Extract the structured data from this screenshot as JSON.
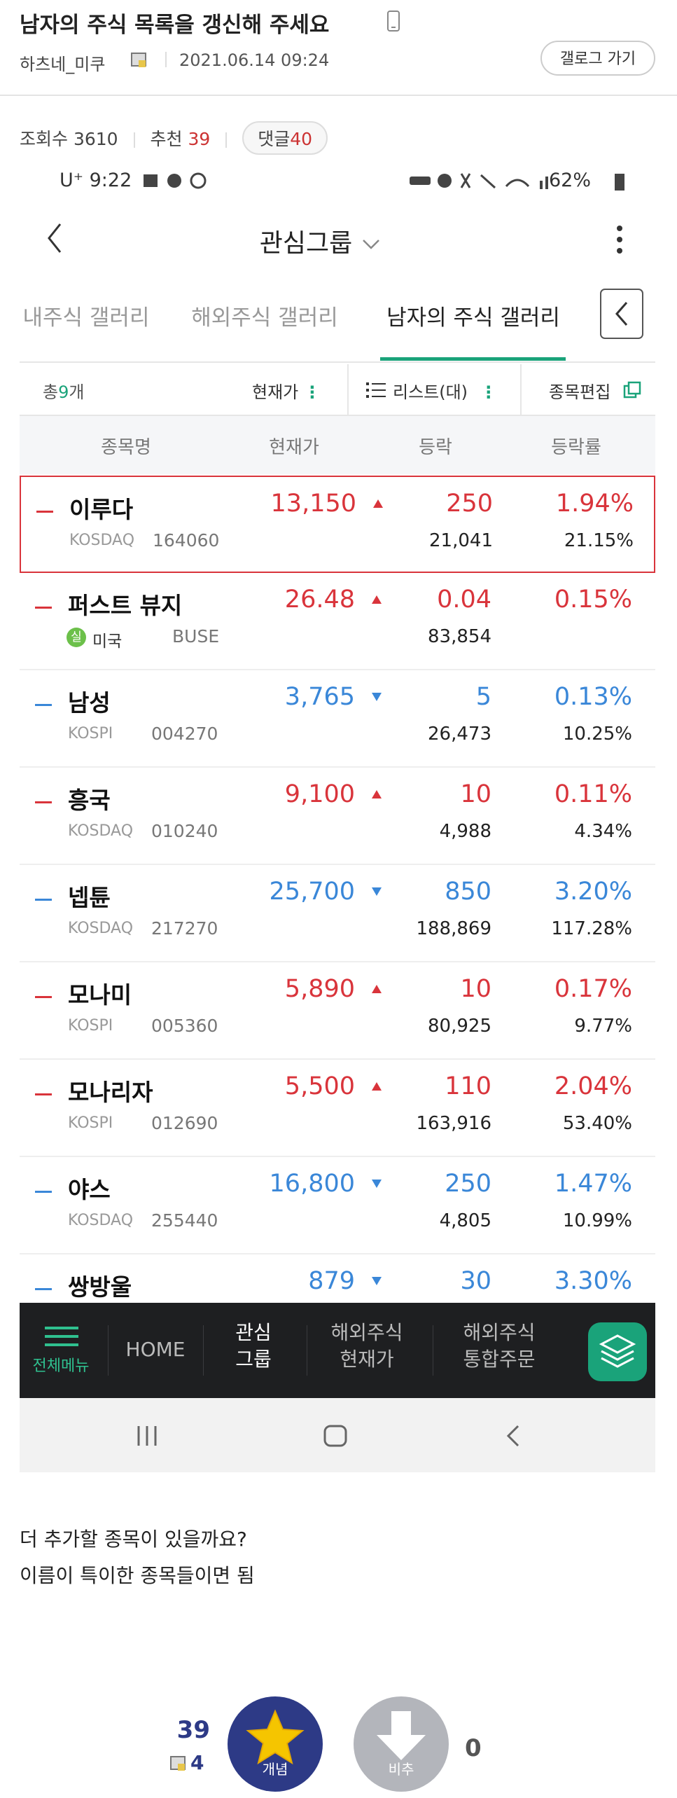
{
  "header": {
    "title": "남자의 주식 목록을 갱신해 주세요",
    "author": "하츠네_미쿠",
    "date": "2021.06.14 09:24",
    "gallog_button": "갤로그 가기"
  },
  "stats": {
    "views_label": "조회수",
    "views": "3610",
    "recommend_label": "추천",
    "recommend": "39",
    "comments_label": "댓글",
    "comments": "40"
  },
  "phone": {
    "carrier": "U⁺",
    "time": "9:22",
    "battery": "62%",
    "group_title": "관심그룹",
    "tabs": [
      "내주식 갤러리",
      "해외주식 갤러리",
      "남자의 주식 갤러리"
    ],
    "active_tab": 2,
    "toolbar": {
      "total_prefix": "총",
      "total": "9",
      "total_suffix": "개",
      "sort": "현재가",
      "view": "리스트(대)",
      "edit": "종목편집"
    },
    "columns": [
      "종목명",
      "현재가",
      "등락",
      "등락률"
    ],
    "up_color": "#d9343b",
    "down_color": "#3a87d8",
    "rows": [
      {
        "name": "이루다",
        "market": "KOSDAQ",
        "code": "164060",
        "price": "13,150",
        "direction": "up",
        "change": "250",
        "change_rate": "1.94%",
        "volume": "21,041",
        "turnover_rate": "21.15%",
        "selected": true
      },
      {
        "name": "퍼스트 뷰지",
        "badge": "실",
        "market": "미국",
        "code": "BUSE",
        "price": "26.48",
        "direction": "up",
        "change": "0.04",
        "change_rate": "0.15%",
        "volume": "83,854"
      },
      {
        "name": "남성",
        "market": "KOSPI",
        "code": "004270",
        "price": "3,765",
        "direction": "down",
        "change": "5",
        "change_rate": "0.13%",
        "volume": "26,473",
        "turnover_rate": "10.25%"
      },
      {
        "name": "흥국",
        "market": "KOSDAQ",
        "code": "010240",
        "price": "9,100",
        "direction": "up",
        "change": "10",
        "change_rate": "0.11%",
        "volume": "4,988",
        "turnover_rate": "4.34%"
      },
      {
        "name": "넵튠",
        "market": "KOSDAQ",
        "code": "217270",
        "price": "25,700",
        "direction": "down",
        "change": "850",
        "change_rate": "3.20%",
        "volume": "188,869",
        "turnover_rate": "117.28%"
      },
      {
        "name": "모나미",
        "market": "KOSPI",
        "code": "005360",
        "price": "5,890",
        "direction": "up",
        "change": "10",
        "change_rate": "0.17%",
        "volume": "80,925",
        "turnover_rate": "9.77%"
      },
      {
        "name": "모나리자",
        "market": "KOSPI",
        "code": "012690",
        "price": "5,500",
        "direction": "up",
        "change": "110",
        "change_rate": "2.04%",
        "volume": "163,916",
        "turnover_rate": "53.40%"
      },
      {
        "name": "야스",
        "market": "KOSDAQ",
        "code": "255440",
        "price": "16,800",
        "direction": "down",
        "change": "250",
        "change_rate": "1.47%",
        "volume": "4,805",
        "turnover_rate": "10.99%"
      },
      {
        "name": "쌍방울",
        "price": "879",
        "direction": "down",
        "change": "30",
        "change_rate": "3.30%"
      }
    ],
    "bottom_nav": [
      "전체메뉴",
      "HOME",
      "관심\n그룹",
      "해외주식\n현재가",
      "해외주식\n통합주문"
    ]
  },
  "body": {
    "lines": [
      "더 추가할 종목이 있을까요?",
      "이름이 특이한 종목들이면 됨"
    ]
  },
  "votes": {
    "up_count": "39",
    "up_fixed": "4",
    "up_label": "개념",
    "down_label": "비추",
    "down_count": "0"
  }
}
